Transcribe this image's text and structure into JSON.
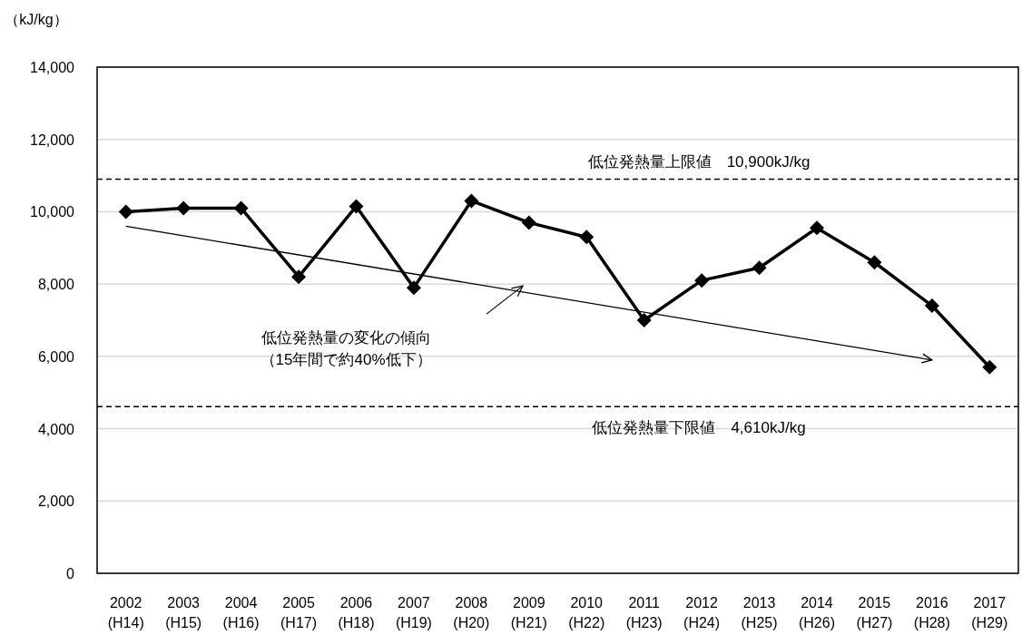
{
  "chart_data": {
    "type": "line",
    "ylabel": "（kJ/kg）",
    "categories": [
      "2002\n(H14)",
      "2003\n(H15)",
      "2004\n(H16)",
      "2005\n(H17)",
      "2006\n(H18)",
      "2007\n(H19)",
      "2008\n(H20)",
      "2009\n(H21)",
      "2010\n(H22)",
      "2011\n(H23)",
      "2012\n(H24)",
      "2013\n(H25)",
      "2014\n(H26)",
      "2015\n(H27)",
      "2016\n(H28)",
      "2017\n(H29)"
    ],
    "ylim": [
      0,
      14000
    ],
    "yticks": [
      {
        "value": 0,
        "label": "0"
      },
      {
        "value": 2000,
        "label": "2,000"
      },
      {
        "value": 4000,
        "label": "4,000"
      },
      {
        "value": 6000,
        "label": "6,000"
      },
      {
        "value": 8000,
        "label": "8,000"
      },
      {
        "value": 10000,
        "label": "10,000"
      },
      {
        "value": 12000,
        "label": "12,000"
      },
      {
        "value": 14000,
        "label": "14,000"
      }
    ],
    "grid": "y",
    "series": [
      {
        "type": "line",
        "color": "#000000",
        "marker": "diamond",
        "line_style": "solid",
        "values": [
          10000,
          10100,
          10100,
          8200,
          10150,
          7900,
          10300,
          9700,
          9300,
          7000,
          8100,
          8450,
          9550,
          8600,
          7400,
          5700
        ]
      },
      {
        "type": "line",
        "color": "#000000",
        "marker": "none",
        "line_style": "solid",
        "x": [
          "2002\n(H14)",
          "2016\n(H28)"
        ],
        "values": [
          9600,
          5900
        ]
      }
    ],
    "ref_lines": [
      {
        "axis": "y",
        "value": 10900,
        "label": "低位発熱量上限値　10,900kJ/kg",
        "color": "#000000",
        "line_style": "dashed"
      },
      {
        "axis": "y",
        "value": 4610,
        "label": "低位発熱量下限値　4,610kJ/kg",
        "color": "#000000",
        "line_style": "dashed"
      }
    ],
    "annotations": [
      "低位発熱量の変化の傾向",
      "（15年間で約40%低下）"
    ]
  }
}
